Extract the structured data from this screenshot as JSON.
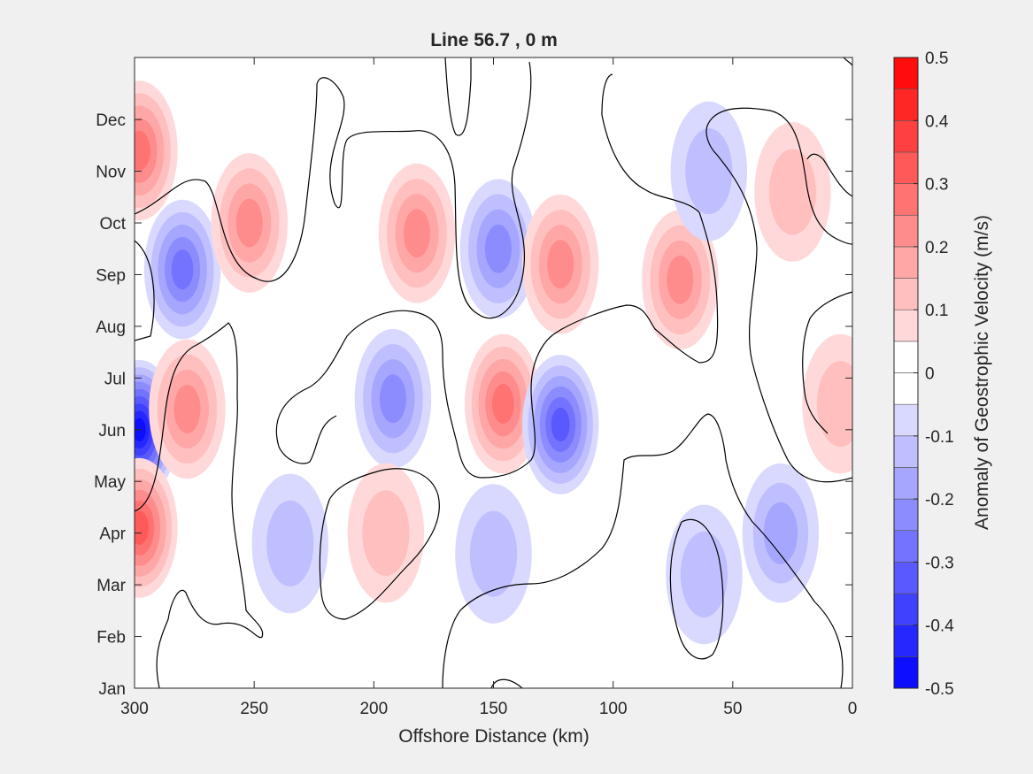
{
  "chart_data": {
    "type": "contour",
    "title": "Line 56.7 , 0 m",
    "xlabel": "Offshore Distance (km)",
    "ylabel": "",
    "x_ticks": [
      300,
      250,
      200,
      150,
      100,
      50,
      0
    ],
    "xlim": [
      300,
      0
    ],
    "y_ticks": [
      "Jan",
      "Feb",
      "Mar",
      "Apr",
      "May",
      "Jun",
      "Jul",
      "Aug",
      "Sep",
      "Oct",
      "Nov",
      "Dec"
    ],
    "ylim": [
      0,
      12.2
    ],
    "colorbar": {
      "label": "Anomaly of Geostrophic Velocity (m/s)",
      "ticks": [
        0.5,
        0.4,
        0.3,
        0.2,
        0.1,
        0,
        -0.1,
        -0.2,
        -0.3,
        -0.4,
        -0.5
      ],
      "range": [
        -0.5,
        0.5
      ],
      "levels": 20,
      "colormap": "blue-white-red",
      "positive_color": "#ff0000",
      "negative_color": "#0000ff",
      "zero_color": "#ffffff"
    },
    "zero_contour_color": "#000000",
    "features": [
      {
        "sign": "negative",
        "x": 298,
        "y": 5.0,
        "peak": -0.45
      },
      {
        "sign": "positive",
        "x": 298,
        "y": 3.1,
        "peak": 0.3
      },
      {
        "sign": "positive",
        "x": 298,
        "y": 10.4,
        "peak": 0.25
      },
      {
        "sign": "positive",
        "x": 278,
        "y": 5.4,
        "peak": 0.2
      },
      {
        "sign": "negative",
        "x": 280,
        "y": 8.1,
        "peak": -0.25
      },
      {
        "sign": "positive",
        "x": 252,
        "y": 9.0,
        "peak": 0.22
      },
      {
        "sign": "positive",
        "x": 182,
        "y": 8.8,
        "peak": 0.18
      },
      {
        "sign": "negative",
        "x": 192,
        "y": 5.6,
        "peak": -0.18
      },
      {
        "sign": "negative",
        "x": 148,
        "y": 8.5,
        "peak": -0.18
      },
      {
        "sign": "positive",
        "x": 146,
        "y": 5.5,
        "peak": 0.25
      },
      {
        "sign": "negative",
        "x": 122,
        "y": 5.1,
        "peak": -0.28
      },
      {
        "sign": "positive",
        "x": 122,
        "y": 8.2,
        "peak": 0.18
      },
      {
        "sign": "positive",
        "x": 72,
        "y": 7.9,
        "peak": 0.18
      },
      {
        "sign": "negative",
        "x": 62,
        "y": 2.2,
        "peak": -0.1
      },
      {
        "sign": "negative",
        "x": 30,
        "y": 3.0,
        "peak": -0.15
      },
      {
        "sign": "negative",
        "x": 60,
        "y": 10.0,
        "peak": -0.1
      },
      {
        "sign": "positive",
        "x": 25,
        "y": 9.6,
        "peak": 0.1
      },
      {
        "sign": "positive",
        "x": 195,
        "y": 3.0,
        "peak": 0.08
      },
      {
        "sign": "negative",
        "x": 150,
        "y": 2.6,
        "peak": -0.08
      },
      {
        "sign": "negative",
        "x": 235,
        "y": 2.8,
        "peak": -0.08
      },
      {
        "sign": "positive",
        "x": 5,
        "y": 5.5,
        "peak": 0.1
      }
    ]
  }
}
